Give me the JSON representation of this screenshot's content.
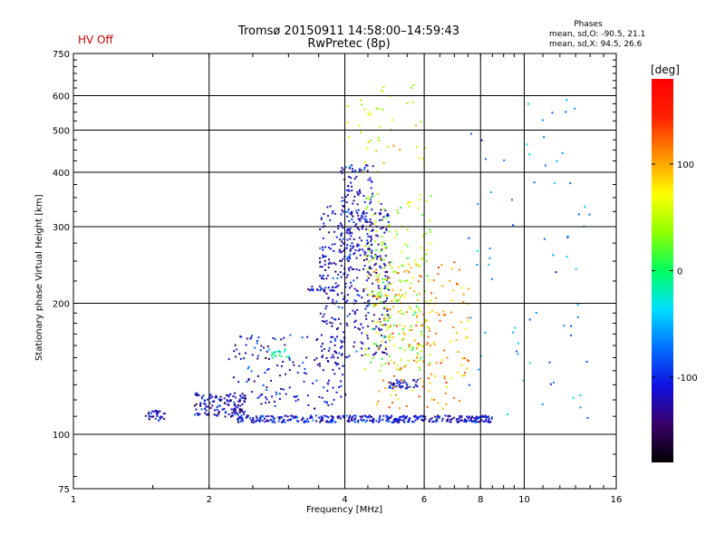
{
  "header": {
    "hv_status": "HV Off",
    "title_line1": "Tromsø 20150911 14:58:00–14:59:43",
    "title_line2": "RwPretec (8p)",
    "phases_title": "Phases",
    "phases_o": "mean, sd,O: -90.5, 21.1",
    "phases_x": "mean, sd,X:  94.5, 26.6"
  },
  "colorbar": {
    "label": "[deg]",
    "ticks": [
      {
        "value": 100,
        "label": "100"
      },
      {
        "value": 0,
        "label": "0"
      },
      {
        "value": -100,
        "label": "-100"
      }
    ],
    "range": [
      -180,
      180
    ],
    "colors": [
      "#000000",
      "#3a006a",
      "#1010e0",
      "#0070ff",
      "#00e0ff",
      "#00ff60",
      "#90ff00",
      "#ffff00",
      "#ff9000",
      "#ff2000",
      "#ff0000"
    ]
  },
  "chart_data": {
    "type": "scatter",
    "title": "Tromsø 20150911 14:58:00–14:59:43",
    "subtitle": "RwPretec (8p)",
    "xlabel": "Frequency [MHz]",
    "ylabel": "Stationary phase Virtual Height [km]",
    "x_scale": "log",
    "y_scale": "log",
    "xlim": [
      1,
      16
    ],
    "ylim": [
      75,
      750
    ],
    "grid": true,
    "x_ticks": [
      1,
      2,
      4,
      6,
      8,
      10,
      16
    ],
    "x_tick_labels": [
      "1",
      "2",
      "4",
      "6",
      "8",
      "10",
      "16"
    ],
    "y_ticks": [
      75,
      100,
      200,
      300,
      400,
      500,
      600,
      750
    ],
    "y_tick_labels": [
      "75",
      "100",
      "200",
      "300",
      "400",
      "500",
      "600",
      "750"
    ],
    "color_variable": "phase [deg]",
    "clusters": [
      {
        "name": "",
        "x_range": [
          1.42,
          1.62
        ],
        "y_range": [
          108,
          114
        ],
        "phase": -120,
        "n": 30
      },
      {
        "name": "",
        "x_range": [
          1.85,
          2.4
        ],
        "y_range": [
          110,
          125
        ],
        "phase": -115,
        "n": 140
      },
      {
        "name": "",
        "x_range": [
          2.3,
          8.5
        ],
        "y_range": [
          107,
          111
        ],
        "phase": -110,
        "n": 380
      },
      {
        "name": "",
        "x_range": [
          2.2,
          4.0
        ],
        "y_range": [
          115,
          170
        ],
        "phase": -110,
        "n": 160
      },
      {
        "name": "",
        "x_range": [
          3.5,
          5.0
        ],
        "y_range": [
          150,
          340
        ],
        "phase": -115,
        "n": 380
      },
      {
        "name": "",
        "x_range": [
          3.9,
          4.6
        ],
        "y_range": [
          240,
          420
        ],
        "phase": -110,
        "n": 140
      },
      {
        "name": "",
        "x_range": [
          4.4,
          6.2
        ],
        "y_range": [
          140,
          360
        ],
        "phase": 40,
        "n": 220
      },
      {
        "name": "",
        "x_range": [
          4.6,
          7.5
        ],
        "y_range": [
          115,
          250
        ],
        "phase": 100,
        "n": 200
      },
      {
        "name": "",
        "x_range": [
          5.0,
          5.8
        ],
        "y_range": [
          128,
          134
        ],
        "phase": -110,
        "n": 40
      },
      {
        "name": "",
        "x_range": [
          3.3,
          3.8
        ],
        "y_range": [
          215,
          220
        ],
        "phase": -115,
        "n": 25
      },
      {
        "name": "",
        "x_range": [
          2.7,
          3.0
        ],
        "y_range": [
          150,
          158
        ],
        "phase": -20,
        "n": 20
      },
      {
        "name": "",
        "x_range": [
          4.0,
          6.0
        ],
        "y_range": [
          400,
          640
        ],
        "phase": 60,
        "n": 45
      },
      {
        "name": "",
        "x_range": [
          7.5,
          14.0
        ],
        "y_range": [
          107,
          600
        ],
        "phase": -60,
        "n": 70
      }
    ]
  }
}
